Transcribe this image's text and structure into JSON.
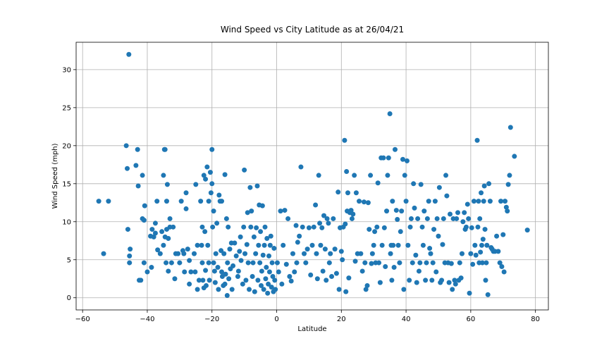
{
  "chart_data": {
    "type": "scatter",
    "title": "Wind Speed vs City Latitude as at 26/04/21",
    "xlabel": "Latitude",
    "ylabel": "Wind Speed (mph)",
    "xlim": [
      -62,
      84
    ],
    "ylim": [
      -1.6,
      33.6
    ],
    "xticks": [
      -60,
      -40,
      -20,
      0,
      20,
      40,
      60,
      80
    ],
    "yticks": [
      0,
      5,
      10,
      15,
      20,
      25,
      30
    ],
    "grid": true,
    "marker_color": "#1f77b4",
    "points": [
      [
        -55,
        12.7
      ],
      [
        -53.5,
        5.8
      ],
      [
        -52,
        12.7
      ],
      [
        -46.5,
        20
      ],
      [
        -46.2,
        17
      ],
      [
        -46,
        9
      ],
      [
        -45.7,
        32
      ],
      [
        -45.5,
        5.5
      ],
      [
        -45.3,
        6.4
      ],
      [
        -45.5,
        4.6
      ],
      [
        -43.5,
        17.4
      ],
      [
        -43,
        19.5
      ],
      [
        -42.8,
        14.7
      ],
      [
        -42.5,
        2.3
      ],
      [
        -42,
        2.3
      ],
      [
        -41.5,
        16.1
      ],
      [
        -41.5,
        10.4
      ],
      [
        -41,
        10.2
      ],
      [
        -41,
        4.6
      ],
      [
        -40.8,
        12.1
      ],
      [
        -40,
        3.4
      ],
      [
        -39,
        8.1
      ],
      [
        -38.7,
        4
      ],
      [
        -38.5,
        9
      ],
      [
        -38,
        8
      ],
      [
        -37.5,
        8.5
      ],
      [
        -37.5,
        9.8
      ],
      [
        -37,
        12.7
      ],
      [
        -36.8,
        6.3
      ],
      [
        -36,
        5.8
      ],
      [
        -35.5,
        8.7
      ],
      [
        -35,
        6.9
      ],
      [
        -35,
        16.1
      ],
      [
        -34.7,
        19.5
      ],
      [
        -34.5,
        19.5
      ],
      [
        -34.5,
        8
      ],
      [
        -34.2,
        4.6
      ],
      [
        -34,
        9
      ],
      [
        -34,
        12.7
      ],
      [
        -33.8,
        14.9
      ],
      [
        -33.5,
        3.5
      ],
      [
        -33.5,
        7.8
      ],
      [
        -33,
        10.4
      ],
      [
        -33,
        9.3
      ],
      [
        -32.5,
        4.6
      ],
      [
        -32,
        9.3
      ],
      [
        -31.5,
        2.5
      ],
      [
        -31.2,
        5.8
      ],
      [
        -30.5,
        5.8
      ],
      [
        -30,
        4.6
      ],
      [
        -29.5,
        12.7
      ],
      [
        -29,
        6.2
      ],
      [
        -28.7,
        5.8
      ],
      [
        -28.5,
        3.4
      ],
      [
        -28,
        13.8
      ],
      [
        -28,
        11.7
      ],
      [
        -27.5,
        6.4
      ],
      [
        -27,
        4.9
      ],
      [
        -27,
        1.8
      ],
      [
        -26.5,
        3.4
      ],
      [
        -25.5,
        5.8
      ],
      [
        -25.2,
        3.4
      ],
      [
        -25,
        14.9
      ],
      [
        -24.5,
        6.9
      ],
      [
        -24.5,
        1.1
      ],
      [
        -24,
        2.3
      ],
      [
        -23.5,
        12.7
      ],
      [
        -23.2,
        6.9
      ],
      [
        -23,
        9.3
      ],
      [
        -23,
        4.6
      ],
      [
        -22.8,
        2.3
      ],
      [
        -22.5,
        1.3
      ],
      [
        -22.5,
        16.1
      ],
      [
        -22.2,
        8.7
      ],
      [
        -22,
        3.6
      ],
      [
        -22,
        15.6
      ],
      [
        -21.8,
        1.6
      ],
      [
        -21.5,
        17.2
      ],
      [
        -21.3,
        6.9
      ],
      [
        -21,
        12.7
      ],
      [
        -21,
        4.6
      ],
      [
        -20.8,
        2.3
      ],
      [
        -20.5,
        16.5
      ],
      [
        -20.3,
        13.8
      ],
      [
        -20,
        19.5
      ],
      [
        -20,
        15
      ],
      [
        -19.8,
        9.3
      ],
      [
        -19.5,
        11.4
      ],
      [
        -19.5,
        4.6
      ],
      [
        -19.2,
        3.5
      ],
      [
        -19,
        2
      ],
      [
        -18.8,
        5.8
      ],
      [
        -18.5,
        9.8
      ],
      [
        -18.2,
        4
      ],
      [
        -18,
        1.1
      ],
      [
        -17.8,
        13.5
      ],
      [
        -17.5,
        12.7
      ],
      [
        -17.2,
        6.2
      ],
      [
        -17,
        3.4
      ],
      [
        -17,
        12.7
      ],
      [
        -16.8,
        2.8
      ],
      [
        -16.5,
        1.6
      ],
      [
        -16.3,
        5.8
      ],
      [
        -16,
        16.2
      ],
      [
        -16,
        1.8
      ],
      [
        -15.8,
        3.1
      ],
      [
        -15.5,
        10.4
      ],
      [
        -15.3,
        0.3
      ],
      [
        -15.2,
        4.6
      ],
      [
        -15,
        9.3
      ],
      [
        -14.8,
        2.5
      ],
      [
        -14.5,
        6.4
      ],
      [
        -14.3,
        3.8
      ],
      [
        -14,
        7.2
      ],
      [
        -13.8,
        1.1
      ],
      [
        -13.5,
        4.2
      ],
      [
        -13,
        7.2
      ],
      [
        -12.5,
        5.5
      ],
      [
        -12,
        2.8
      ],
      [
        -11.8,
        3.5
      ],
      [
        -11.5,
        6.1
      ],
      [
        -11.2,
        8
      ],
      [
        -11,
        4.9
      ],
      [
        -10.5,
        1.8
      ],
      [
        -10.2,
        9.3
      ],
      [
        -10,
        16.8
      ],
      [
        -9.8,
        5.8
      ],
      [
        -9.5,
        2.3
      ],
      [
        -9.2,
        7
      ],
      [
        -9,
        11.2
      ],
      [
        -8.8,
        4.6
      ],
      [
        -8.5,
        1.1
      ],
      [
        -8.2,
        14.5
      ],
      [
        -8,
        9.3
      ],
      [
        -7.8,
        11.4
      ],
      [
        -7.5,
        2.8
      ],
      [
        -7.3,
        4.6
      ],
      [
        -7,
        8
      ],
      [
        -6.8,
        0.8
      ],
      [
        -6.5,
        5.8
      ],
      [
        -6.3,
        9.2
      ],
      [
        -6,
        14.7
      ],
      [
        -5.8,
        2.3
      ],
      [
        -5.6,
        6.9
      ],
      [
        -5.4,
        12.2
      ],
      [
        -5.2,
        4.6
      ],
      [
        -5,
        8.7
      ],
      [
        -4.8,
        1.6
      ],
      [
        -4.6,
        3.5
      ],
      [
        -4.4,
        12.1
      ],
      [
        -4.2,
        5.6
      ],
      [
        -4,
        1.1
      ],
      [
        -3.8,
        6.9
      ],
      [
        -3.6,
        9.3
      ],
      [
        -3.4,
        2.5
      ],
      [
        -3.2,
        4
      ],
      [
        -3,
        7.8
      ],
      [
        -2.8,
        0.6
      ],
      [
        -2.6,
        1.8
      ],
      [
        -2.4,
        5.5
      ],
      [
        -2.2,
        3.4
      ],
      [
        -2,
        6.9
      ],
      [
        -1.8,
        8.1
      ],
      [
        -1.6,
        1.4
      ],
      [
        -1.4,
        4.6
      ],
      [
        -1.2,
        2.8
      ],
      [
        -1,
        0.8
      ],
      [
        -0.8,
        6.5
      ],
      [
        -0.6,
        2.3
      ],
      [
        -0.4,
        1.1
      ],
      [
        0.2,
        4.6
      ],
      [
        0.6,
        3.4
      ],
      [
        1.2,
        11.4
      ],
      [
        1.6,
        1.8
      ],
      [
        2,
        6.9
      ],
      [
        2.5,
        11.5
      ],
      [
        3,
        4.4
      ],
      [
        3.5,
        10.4
      ],
      [
        4,
        2.8
      ],
      [
        4.5,
        2.2
      ],
      [
        5,
        5.8
      ],
      [
        5.5,
        3.4
      ],
      [
        6,
        9.5
      ],
      [
        6.2,
        4.6
      ],
      [
        6.5,
        7.3
      ],
      [
        7,
        8.1
      ],
      [
        7.5,
        17.2
      ],
      [
        8,
        9.3
      ],
      [
        8.5,
        5.8
      ],
      [
        9,
        4.6
      ],
      [
        9.5,
        6.4
      ],
      [
        10,
        9.2
      ],
      [
        10.5,
        3
      ],
      [
        11,
        6.9
      ],
      [
        11.5,
        9.3
      ],
      [
        12,
        12.2
      ],
      [
        12.3,
        5.8
      ],
      [
        12.6,
        2.5
      ],
      [
        13,
        16.1
      ],
      [
        13.3,
        9.8
      ],
      [
        13.6,
        6.9
      ],
      [
        14,
        9.2
      ],
      [
        14.3,
        3.5
      ],
      [
        14.6,
        10.8
      ],
      [
        15,
        6.4
      ],
      [
        15.3,
        2.3
      ],
      [
        15.6,
        10.4
      ],
      [
        16,
        9.8
      ],
      [
        16.3,
        4.6
      ],
      [
        16.6,
        5.8
      ],
      [
        17,
        2.8
      ],
      [
        17.5,
        10.4
      ],
      [
        18,
        6.4
      ],
      [
        18.5,
        3.2
      ],
      [
        19,
        13.9
      ],
      [
        19.3,
        1.1
      ],
      [
        19.6,
        9.2
      ],
      [
        20,
        6.1
      ],
      [
        20.3,
        5
      ],
      [
        20.6,
        9.3
      ],
      [
        21,
        20.7
      ],
      [
        21.2,
        9.7
      ],
      [
        21.4,
        0.8
      ],
      [
        21.6,
        16.6
      ],
      [
        21.8,
        11.4
      ],
      [
        22,
        13.8
      ],
      [
        22.3,
        2.6
      ],
      [
        22.6,
        11.2
      ],
      [
        23,
        11.5
      ],
      [
        23.3,
        10.4
      ],
      [
        23.6,
        11
      ],
      [
        24,
        16.1
      ],
      [
        24.3,
        4.8
      ],
      [
        24.6,
        13.8
      ],
      [
        25,
        5.8
      ],
      [
        25.5,
        12.7
      ],
      [
        26,
        5.8
      ],
      [
        26.5,
        3.5
      ],
      [
        27,
        12.6
      ],
      [
        27.3,
        4.6
      ],
      [
        27.6,
        1.1
      ],
      [
        28,
        1.6
      ],
      [
        28.3,
        12.5
      ],
      [
        28.6,
        9
      ],
      [
        29,
        16.1
      ],
      [
        29.3,
        4.5
      ],
      [
        29.6,
        5.8
      ],
      [
        30,
        6.9
      ],
      [
        30.3,
        8.7
      ],
      [
        30.6,
        4.6
      ],
      [
        31,
        9.3
      ],
      [
        31.3,
        15.1
      ],
      [
        31.6,
        4.6
      ],
      [
        32,
        2
      ],
      [
        32.3,
        18.4
      ],
      [
        32.6,
        6.9
      ],
      [
        33,
        18.4
      ],
      [
        33.3,
        9.2
      ],
      [
        33.6,
        4.1
      ],
      [
        34,
        11.4
      ],
      [
        34.3,
        16.1
      ],
      [
        34.6,
        18.4
      ],
      [
        35,
        24.2
      ],
      [
        35.2,
        5.8
      ],
      [
        35.4,
        6.9
      ],
      [
        35.6,
        2.3
      ],
      [
        35.8,
        12.7
      ],
      [
        36,
        6.9
      ],
      [
        36.3,
        4
      ],
      [
        36.6,
        19.5
      ],
      [
        37,
        11.5
      ],
      [
        37.3,
        10.3
      ],
      [
        37.6,
        6.9
      ],
      [
        38,
        4.6
      ],
      [
        38.3,
        8.7
      ],
      [
        38.6,
        11.4
      ],
      [
        39,
        18.2
      ],
      [
        39.3,
        1.1
      ],
      [
        39.6,
        16.1
      ],
      [
        40,
        12.7
      ],
      [
        40.3,
        18
      ],
      [
        40.6,
        6.9
      ],
      [
        41,
        2.3
      ],
      [
        41.3,
        9.3
      ],
      [
        41.6,
        10.4
      ],
      [
        42,
        4.6
      ],
      [
        42.3,
        15
      ],
      [
        42.6,
        11.8
      ],
      [
        43,
        5.6
      ],
      [
        43.3,
        2
      ],
      [
        43.6,
        10.4
      ],
      [
        44,
        3.5
      ],
      [
        44.3,
        4.6
      ],
      [
        44.6,
        14.9
      ],
      [
        45,
        9.3
      ],
      [
        45.3,
        6.9
      ],
      [
        45.6,
        11.4
      ],
      [
        46,
        2.3
      ],
      [
        46.3,
        4.6
      ],
      [
        46.6,
        10.4
      ],
      [
        47,
        12.7
      ],
      [
        47.3,
        6.5
      ],
      [
        47.6,
        5.8
      ],
      [
        48,
        2.3
      ],
      [
        48.3,
        4.6
      ],
      [
        48.6,
        9
      ],
      [
        49,
        12.7
      ],
      [
        49.3,
        3.4
      ],
      [
        49.6,
        10.4
      ],
      [
        50,
        8.1
      ],
      [
        50.3,
        14.5
      ],
      [
        50.6,
        2
      ],
      [
        51,
        2.3
      ],
      [
        51.3,
        7
      ],
      [
        51.6,
        10.4
      ],
      [
        52,
        4.6
      ],
      [
        52.3,
        16.1
      ],
      [
        52.6,
        13.4
      ],
      [
        53,
        4.6
      ],
      [
        53.3,
        2
      ],
      [
        53.6,
        11
      ],
      [
        54,
        4.5
      ],
      [
        54.3,
        1.1
      ],
      [
        54.6,
        10.4
      ],
      [
        55,
        2.3
      ],
      [
        55.3,
        1.8
      ],
      [
        55.6,
        10.4
      ],
      [
        56,
        11.2
      ],
      [
        56.3,
        2.3
      ],
      [
        56.6,
        4.6
      ],
      [
        57,
        2.6
      ],
      [
        57.3,
        5.8
      ],
      [
        57.6,
        10
      ],
      [
        58,
        11.2
      ],
      [
        58.3,
        9
      ],
      [
        58.6,
        9.3
      ],
      [
        59,
        12.3
      ],
      [
        59.3,
        10.4
      ],
      [
        59.6,
        0.6
      ],
      [
        60,
        5.8
      ],
      [
        60.3,
        9.2
      ],
      [
        60.6,
        4.4
      ],
      [
        61,
        12.7
      ],
      [
        61.3,
        6.9
      ],
      [
        61.6,
        5.6
      ],
      [
        62,
        20.7
      ],
      [
        62.2,
        9.3
      ],
      [
        62.4,
        12.7
      ],
      [
        62.6,
        4.6
      ],
      [
        62.8,
        10.4
      ],
      [
        63,
        6
      ],
      [
        63.2,
        13.8
      ],
      [
        63.4,
        6.9
      ],
      [
        63.6,
        4.6
      ],
      [
        63.8,
        7.7
      ],
      [
        64,
        12.7
      ],
      [
        64.2,
        14.7
      ],
      [
        64.4,
        9
      ],
      [
        64.6,
        2.3
      ],
      [
        64.8,
        4.6
      ],
      [
        65,
        6.9
      ],
      [
        65.3,
        0.4
      ],
      [
        65.6,
        15
      ],
      [
        66,
        12.7
      ],
      [
        66.3,
        6.6
      ],
      [
        66.6,
        6.4
      ],
      [
        67,
        6.1
      ],
      [
        67.5,
        6.1
      ],
      [
        68,
        8.1
      ],
      [
        68.5,
        6.1
      ],
      [
        69,
        4.6
      ],
      [
        69.3,
        12.7
      ],
      [
        69.6,
        4.1
      ],
      [
        70,
        8.3
      ],
      [
        70.3,
        3.4
      ],
      [
        70.6,
        12.7
      ],
      [
        71,
        11.9
      ],
      [
        71.3,
        11.4
      ],
      [
        71.6,
        14.9
      ],
      [
        72,
        16.1
      ],
      [
        72.3,
        22.4
      ],
      [
        73.5,
        18.6
      ],
      [
        77.5,
        8.9
      ]
    ]
  }
}
